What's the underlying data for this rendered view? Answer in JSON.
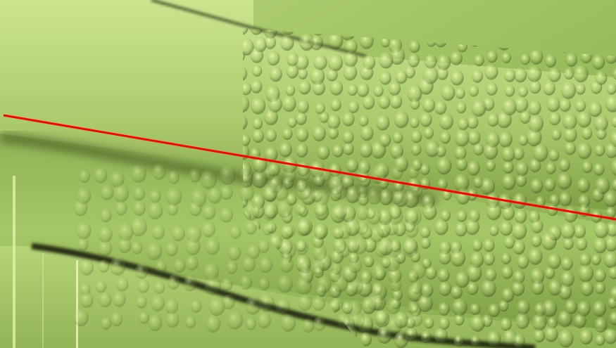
{
  "scene": {
    "type": "3d-surface-render",
    "surface_color": "#a8c96a",
    "highlight_color": "#e6f7a4",
    "shadow_color": "#2e3d16",
    "texture": "bumpy",
    "line_color": "#ff0000"
  }
}
